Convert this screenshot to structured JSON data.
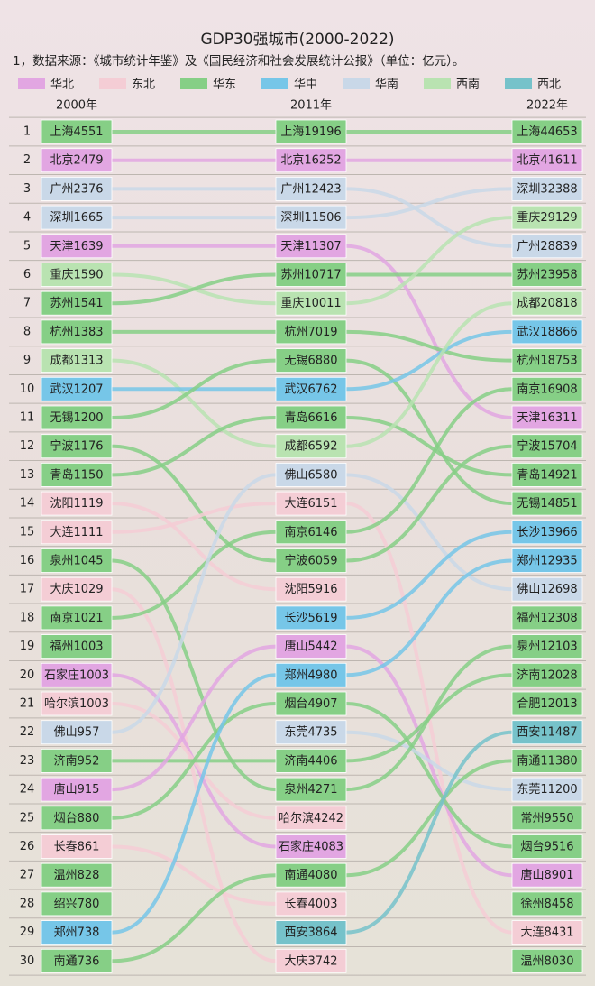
{
  "chart_data": {
    "type": "bump",
    "title": "GDP30强城市(2000-2022)",
    "subtitle": "1，数据来源：《城市统计年鉴》及《国民经济和社会发展统计公报》（单位：亿元）。",
    "regions": [
      {
        "name": "华北",
        "color": "#e2a6e2"
      },
      {
        "name": "东北",
        "color": "#f4cdd5"
      },
      {
        "name": "华东",
        "color": "#86cf86"
      },
      {
        "name": "华中",
        "color": "#76c6e8"
      },
      {
        "name": "华南",
        "color": "#c9d8e8"
      },
      {
        "name": "西南",
        "color": "#b9e3b1"
      },
      {
        "name": "西北",
        "color": "#76c2ca"
      }
    ],
    "ranks": [
      1,
      2,
      3,
      4,
      5,
      6,
      7,
      8,
      9,
      10,
      11,
      12,
      13,
      14,
      15,
      16,
      17,
      18,
      19,
      20,
      21,
      22,
      23,
      24,
      25,
      26,
      27,
      28,
      29,
      30
    ],
    "columns": [
      {
        "name": "2000年",
        "cities": [
          "上海",
          "北京",
          "广州",
          "深圳",
          "天津",
          "重庆",
          "苏州",
          "杭州",
          "成都",
          "武汉",
          "无锡",
          "宁波",
          "青岛",
          "沈阳",
          "大连",
          "泉州",
          "大庆",
          "南京",
          "福州",
          "石家庄",
          "哈尔滨",
          "佛山",
          "济南",
          "唐山",
          "烟台",
          "长春",
          "温州",
          "绍兴",
          "郑州",
          "南通"
        ],
        "values": [
          4551,
          2479,
          2376,
          1665,
          1639,
          1590,
          1541,
          1383,
          1313,
          1207,
          1200,
          1176,
          1150,
          1119,
          1111,
          1045,
          1029,
          1021,
          1003,
          1003,
          1003,
          957,
          952,
          915,
          880,
          861,
          828,
          780,
          738,
          736
        ],
        "region": [
          "华东",
          "华北",
          "华南",
          "华南",
          "华北",
          "西南",
          "华东",
          "华东",
          "西南",
          "华中",
          "华东",
          "华东",
          "华东",
          "东北",
          "东北",
          "华东",
          "东北",
          "华东",
          "华东",
          "华北",
          "东北",
          "华南",
          "华东",
          "华北",
          "华东",
          "东北",
          "华东",
          "华东",
          "华中",
          "华东"
        ]
      },
      {
        "name": "2011年",
        "cities": [
          "上海",
          "北京",
          "广州",
          "深圳",
          "天津",
          "苏州",
          "重庆",
          "杭州",
          "无锡",
          "武汉",
          "青岛",
          "成都",
          "佛山",
          "大连",
          "南京",
          "宁波",
          "沈阳",
          "长沙",
          "唐山",
          "郑州",
          "烟台",
          "东莞",
          "济南",
          "泉州",
          "哈尔滨",
          "石家庄",
          "南通",
          "长春",
          "西安",
          "大庆"
        ],
        "values": [
          19196,
          16252,
          12423,
          11506,
          11307,
          10717,
          10011,
          7019,
          6880,
          6762,
          6616,
          6592,
          6580,
          6151,
          6146,
          6059,
          5916,
          5619,
          5442,
          4980,
          4907,
          4735,
          4406,
          4271,
          4242,
          4083,
          4080,
          4003,
          3864,
          3742
        ],
        "region": [
          "华东",
          "华北",
          "华南",
          "华南",
          "华北",
          "华东",
          "西南",
          "华东",
          "华东",
          "华中",
          "华东",
          "西南",
          "华南",
          "东北",
          "华东",
          "华东",
          "东北",
          "华中",
          "华北",
          "华中",
          "华东",
          "华南",
          "华东",
          "华东",
          "东北",
          "华北",
          "华东",
          "东北",
          "西北",
          "东北"
        ]
      },
      {
        "name": "2022年",
        "cities": [
          "上海",
          "北京",
          "深圳",
          "重庆",
          "广州",
          "苏州",
          "成都",
          "武汉",
          "杭州",
          "南京",
          "天津",
          "宁波",
          "青岛",
          "无锡",
          "长沙",
          "郑州",
          "佛山",
          "福州",
          "泉州",
          "济南",
          "合肥",
          "西安",
          "南通",
          "东莞",
          "常州",
          "烟台",
          "唐山",
          "徐州",
          "大连",
          "温州"
        ],
        "values": [
          44653,
          41611,
          32388,
          29129,
          28839,
          23958,
          20818,
          18866,
          18753,
          16908,
          16311,
          15704,
          14921,
          14851,
          13966,
          12935,
          12698,
          12308,
          12103,
          12028,
          12013,
          11487,
          11380,
          11200,
          9550,
          9516,
          8901,
          8458,
          8431,
          8030
        ],
        "region": [
          "华东",
          "华北",
          "华南",
          "西南",
          "华南",
          "华东",
          "西南",
          "华中",
          "华东",
          "华东",
          "华北",
          "华东",
          "华东",
          "华东",
          "华中",
          "华中",
          "华南",
          "华东",
          "华东",
          "华东",
          "华东",
          "西北",
          "华东",
          "华南",
          "华东",
          "华东",
          "华北",
          "华东",
          "东北",
          "华东"
        ]
      }
    ]
  }
}
